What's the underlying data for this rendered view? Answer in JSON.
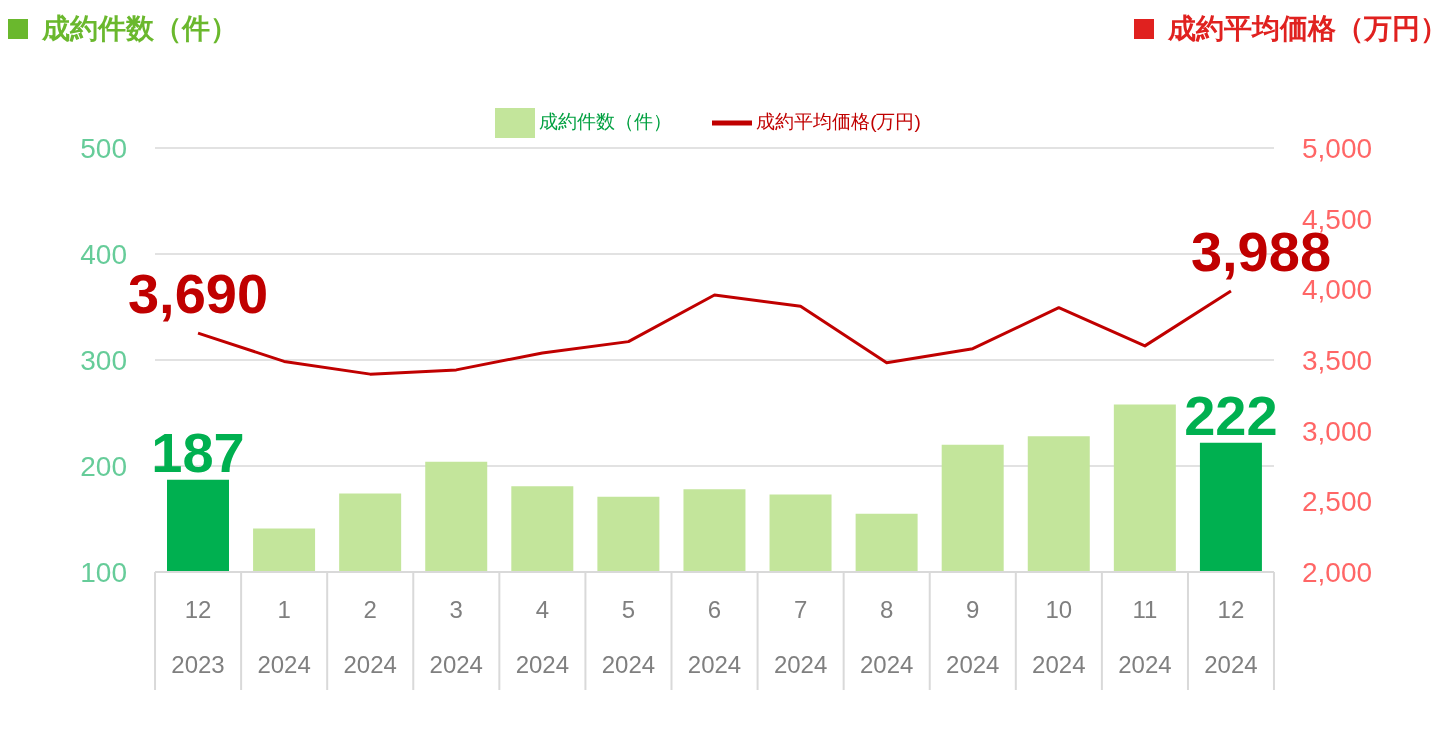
{
  "chart_data": {
    "type": "bar",
    "ylabel": "成約件数（件）",
    "y2label": "成約平均価格（万円）",
    "categories": [
      "12\n2023",
      "1\n2024",
      "2\n2024",
      "3\n2024",
      "4\n2024",
      "5\n2024",
      "6\n2024",
      "7\n2024",
      "8\n2024",
      "9\n2024",
      "10\n2024",
      "11\n2024",
      "12\n2024"
    ],
    "series": [
      {
        "name": "成約件数（件）",
        "color": "#c3e59b",
        "colors": [
          "#00b050",
          "#c3e59b",
          "#c3e59b",
          "#c3e59b",
          "#c3e59b",
          "#c3e59b",
          "#c3e59b",
          "#c3e59b",
          "#c3e59b",
          "#c3e59b",
          "#c3e59b",
          "#c3e59b",
          "#00b050"
        ],
        "values": [
          187,
          141,
          174,
          204,
          181,
          171,
          178,
          173,
          155,
          220,
          228,
          258,
          222
        ],
        "value_labels": [
          "187",
          null,
          null,
          null,
          null,
          null,
          null,
          null,
          null,
          null,
          null,
          null,
          "222"
        ]
      },
      {
        "name": "成約平均価格(万円)",
        "type": "line",
        "axis": "y2",
        "color": "#c00000",
        "values": [
          3690,
          3490,
          3400,
          3430,
          3550,
          3630,
          3960,
          3880,
          3480,
          3580,
          3870,
          3600,
          3988
        ],
        "value_labels": [
          "3,690",
          null,
          null,
          null,
          null,
          null,
          null,
          null,
          null,
          null,
          null,
          null,
          "3,988"
        ]
      }
    ],
    "ylim": [
      100,
      500
    ],
    "yticks": [
      100,
      200,
      300,
      400,
      500
    ],
    "y2lim": [
      2000,
      5000
    ],
    "y2ticks": [
      {
        "value": 2000,
        "label": "2,000"
      },
      {
        "value": 2500,
        "label": "2,500"
      },
      {
        "value": 3000,
        "label": "3,000"
      },
      {
        "value": 3500,
        "label": "3,500"
      },
      {
        "value": 4000,
        "label": "4,000"
      },
      {
        "value": 4500,
        "label": "4,500"
      },
      {
        "value": 5000,
        "label": "5,000"
      }
    ],
    "grid": "y",
    "legend": "top",
    "marker": "none",
    "line_style": "solid"
  }
}
